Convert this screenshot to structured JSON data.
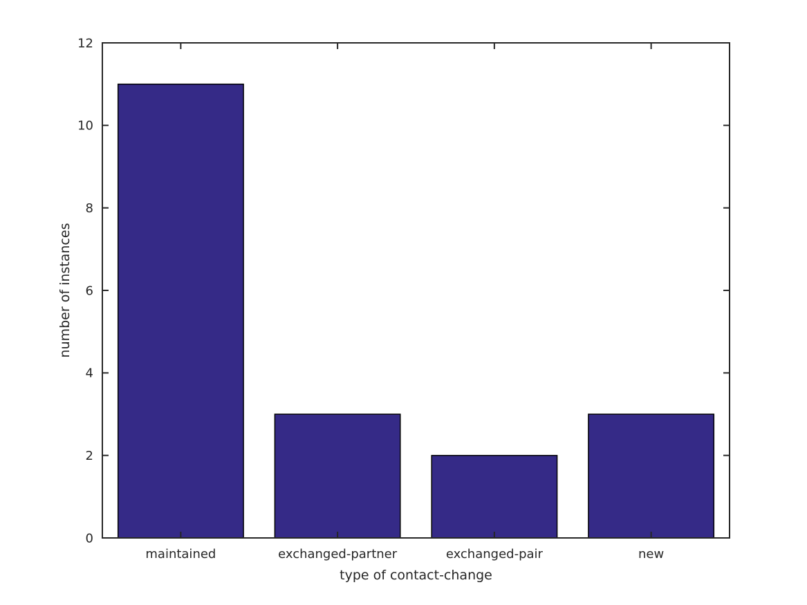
{
  "chart_data": {
    "type": "bar",
    "title": "",
    "categories": [
      "maintained",
      "exchanged-partner",
      "exchanged-pair",
      "new"
    ],
    "values": [
      11,
      3,
      2,
      3
    ],
    "xlabel": "type of contact-change",
    "ylabel": "number of instances",
    "ylim": [
      0,
      12
    ],
    "yticks": [
      0,
      2,
      4,
      6,
      8,
      10,
      12
    ],
    "bar_width_fraction": 0.8,
    "grid": false,
    "legend": null,
    "box": true,
    "tick_direction": "in",
    "colors": {
      "bar_fill": "#352a87",
      "bar_edge": "#000000",
      "axis": "#262626",
      "text": "#262626",
      "background": "#ffffff"
    }
  }
}
